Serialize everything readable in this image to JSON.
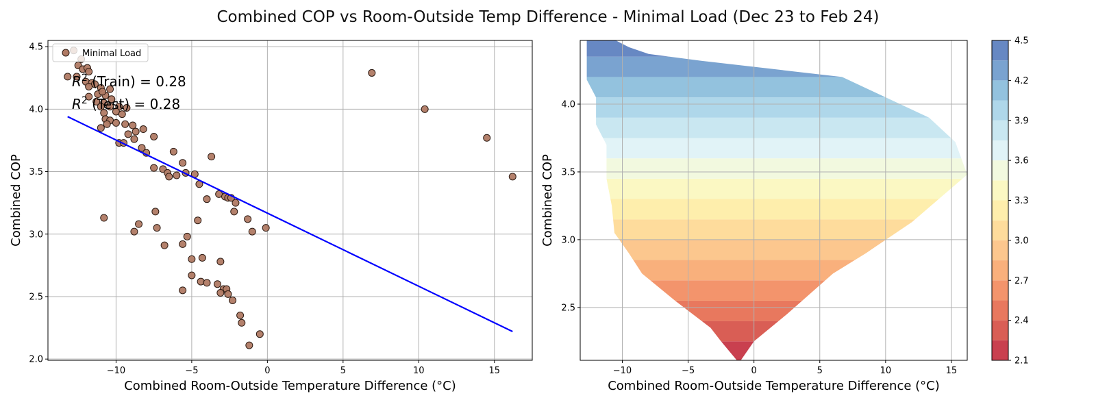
{
  "figure": {
    "title": "Combined COP vs Room-Outside Temp Difference - Minimal Load (Dec 23 to Feb 24)"
  },
  "colors": {
    "scatter_fill": "#b07a64",
    "scatter_edge": "#2b1a12",
    "regression_line": "#0000ff",
    "grid": "#b0b0b0",
    "axes": "#000000"
  },
  "chart_data": [
    {
      "type": "scatter",
      "xlabel": "Combined Room-Outside Temperature Difference (°C)",
      "ylabel": "Combined COP",
      "xlim": [
        -14.5,
        17.5
      ],
      "ylim": [
        1.99,
        4.55
      ],
      "xticks": [
        -10,
        -5,
        0,
        5,
        10,
        15
      ],
      "yticks": [
        2.0,
        2.5,
        3.0,
        3.5,
        4.0,
        4.5
      ],
      "grid": true,
      "legend": {
        "position": "top-left",
        "entries": [
          "Minimal Load"
        ]
      },
      "annotations": [
        "$R^2$ (Train) = 0.28",
        "$R^2$ (Test) = 0.28"
      ],
      "series": [
        {
          "name": "Minimal Load",
          "points": [
            [
              -12.8,
              4.47
            ],
            [
              -12.3,
              4.4
            ],
            [
              -12.5,
              4.35
            ],
            [
              -12.2,
              4.32
            ],
            [
              -11.9,
              4.33
            ],
            [
              -13.2,
              4.26
            ],
            [
              -12.6,
              4.26
            ],
            [
              -12.0,
              4.22
            ],
            [
              -11.8,
              4.3
            ],
            [
              -11.6,
              4.21
            ],
            [
              -11.4,
              4.2
            ],
            [
              -11.8,
              4.18
            ],
            [
              -11.0,
              4.17
            ],
            [
              -10.4,
              4.16
            ],
            [
              -10.7,
              4.11
            ],
            [
              -11.2,
              4.12
            ],
            [
              -10.9,
              4.14
            ],
            [
              -11.3,
              4.06
            ],
            [
              -11.8,
              4.1
            ],
            [
              -10.3,
              4.08
            ],
            [
              -10.8,
              4.05
            ],
            [
              -11.0,
              4.02
            ],
            [
              -10.4,
              4.02
            ],
            [
              -9.8,
              4.02
            ],
            [
              -9.3,
              4.01
            ],
            [
              -10.0,
              3.98
            ],
            [
              -10.8,
              3.97
            ],
            [
              -9.6,
              3.96
            ],
            [
              -10.7,
              3.92
            ],
            [
              -10.4,
              3.91
            ],
            [
              -10.0,
              3.89
            ],
            [
              -10.6,
              3.88
            ],
            [
              -9.4,
              3.88
            ],
            [
              -8.9,
              3.87
            ],
            [
              -11.0,
              3.85
            ],
            [
              -8.2,
              3.84
            ],
            [
              -8.7,
              3.82
            ],
            [
              -9.2,
              3.8
            ],
            [
              -8.8,
              3.76
            ],
            [
              -7.5,
              3.78
            ],
            [
              -9.8,
              3.73
            ],
            [
              -9.5,
              3.73
            ],
            [
              -8.3,
              3.69
            ],
            [
              -8.0,
              3.65
            ],
            [
              -6.2,
              3.66
            ],
            [
              -3.7,
              3.62
            ],
            [
              -5.6,
              3.57
            ],
            [
              -7.5,
              3.53
            ],
            [
              -6.9,
              3.52
            ],
            [
              -6.6,
              3.49
            ],
            [
              -5.4,
              3.49
            ],
            [
              -4.8,
              3.48
            ],
            [
              -6.5,
              3.46
            ],
            [
              -6.0,
              3.47
            ],
            [
              -4.5,
              3.4
            ],
            [
              -3.2,
              3.32
            ],
            [
              -2.8,
              3.3
            ],
            [
              -2.6,
              3.29
            ],
            [
              -2.4,
              3.29
            ],
            [
              -4.0,
              3.28
            ],
            [
              -2.1,
              3.25
            ],
            [
              -7.4,
              3.18
            ],
            [
              -2.2,
              3.18
            ],
            [
              -1.3,
              3.12
            ],
            [
              -10.8,
              3.13
            ],
            [
              -4.6,
              3.11
            ],
            [
              -8.5,
              3.08
            ],
            [
              -7.3,
              3.05
            ],
            [
              -0.1,
              3.05
            ],
            [
              -8.8,
              3.02
            ],
            [
              -1.0,
              3.02
            ],
            [
              -5.3,
              2.98
            ],
            [
              -6.8,
              2.91
            ],
            [
              -5.6,
              2.92
            ],
            [
              -5.0,
              2.8
            ],
            [
              -4.3,
              2.81
            ],
            [
              -3.1,
              2.78
            ],
            [
              -5.0,
              2.67
            ],
            [
              -4.4,
              2.62
            ],
            [
              -4.0,
              2.61
            ],
            [
              -3.3,
              2.6
            ],
            [
              -2.9,
              2.56
            ],
            [
              -2.7,
              2.56
            ],
            [
              -5.6,
              2.55
            ],
            [
              -3.1,
              2.53
            ],
            [
              -2.6,
              2.52
            ],
            [
              -2.3,
              2.47
            ],
            [
              -1.8,
              2.35
            ],
            [
              -1.7,
              2.29
            ],
            [
              -0.5,
              2.2
            ],
            [
              -1.2,
              2.11
            ],
            [
              6.9,
              4.29
            ],
            [
              10.4,
              4.0
            ],
            [
              14.5,
              3.77
            ],
            [
              16.2,
              3.46
            ]
          ]
        },
        {
          "name": "",
          "type": "line",
          "x": [
            -13.2,
            16.2
          ],
          "y": [
            3.94,
            2.22
          ]
        }
      ]
    },
    {
      "type": "contourf",
      "xlabel": "Combined Room-Outside Temperature Difference (°C)",
      "ylabel": "Combined COP",
      "xlim": [
        -13.2,
        16.2
      ],
      "ylim": [
        2.11,
        4.47
      ],
      "xticks": [
        -10,
        -5,
        0,
        5,
        10,
        15
      ],
      "yticks": [
        2.5,
        3.0,
        3.5,
        4.0
      ],
      "grid": true,
      "levels": [
        2.1,
        2.25,
        2.4,
        2.55,
        2.7,
        2.85,
        3.0,
        3.15,
        3.3,
        3.45,
        3.6,
        3.75,
        3.9,
        4.05,
        4.2,
        4.35,
        4.5
      ],
      "level_colors": [
        "#c9404f",
        "#d95e55",
        "#e8785e",
        "#f3946c",
        "#f9b07c",
        "#fcc78e",
        "#fedc9c",
        "#feeeac",
        "#fbf8c3",
        "#f2f9df",
        "#e1f3f7",
        "#c9e7f1",
        "#afd7ea",
        "#93c2de",
        "#7aa3d0",
        "#6788c3"
      ],
      "colorbar": {
        "ticks": [
          2.1,
          2.4,
          2.7,
          3.0,
          3.3,
          3.6,
          3.9,
          4.2,
          4.5
        ],
        "tick_labels": [
          "2.1",
          "2.4",
          "2.7",
          "3.0",
          "3.3",
          "3.6",
          "3.9",
          "4.2",
          "4.5"
        ]
      },
      "region_boundary": {
        "left": [
          [
            -12.7,
            4.47
          ],
          [
            -12.7,
            4.18
          ],
          [
            -12.0,
            4.05
          ],
          [
            -12.0,
            3.85
          ],
          [
            -11.2,
            3.7
          ],
          [
            -11.2,
            3.45
          ],
          [
            -10.8,
            3.25
          ],
          [
            -10.6,
            3.05
          ],
          [
            -9.5,
            2.9
          ],
          [
            -8.5,
            2.75
          ],
          [
            -6.0,
            2.55
          ],
          [
            -3.3,
            2.35
          ],
          [
            -2.5,
            2.25
          ],
          [
            -1.3,
            2.11
          ]
        ],
        "right": [
          [
            -10.5,
            4.47
          ],
          [
            -9.5,
            4.42
          ],
          [
            -8.0,
            4.37
          ],
          [
            -4.0,
            4.32
          ],
          [
            6.7,
            4.2
          ],
          [
            13.3,
            3.9
          ],
          [
            15.3,
            3.72
          ],
          [
            16.2,
            3.48
          ],
          [
            12.0,
            3.13
          ],
          [
            8.5,
            2.9
          ],
          [
            6.0,
            2.75
          ],
          [
            2.5,
            2.45
          ],
          [
            0.0,
            2.25
          ],
          [
            -1.0,
            2.11
          ]
        ]
      }
    }
  ]
}
